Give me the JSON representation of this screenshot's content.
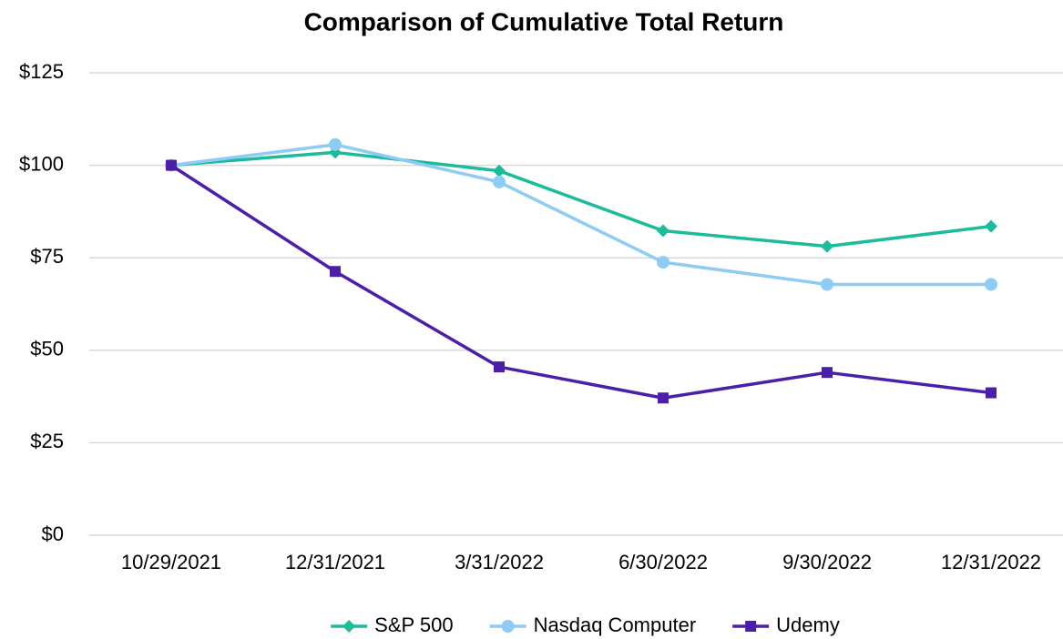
{
  "chart_data": {
    "type": "line",
    "title": "Comparison of Cumulative Total Return",
    "categories": [
      "10/29/2021",
      "12/31/2021",
      "3/31/2022",
      "6/30/2022",
      "9/30/2022",
      "12/31/2022"
    ],
    "series": [
      {
        "name": "S&P 500",
        "color": "#1bbc9b",
        "marker": "diamond",
        "values": [
          100,
          103.5,
          98.5,
          82.3,
          78.1,
          83.5
        ]
      },
      {
        "name": "Nasdaq Computer",
        "color": "#8ecbf5",
        "marker": "circle",
        "values": [
          100,
          105.6,
          95.5,
          73.8,
          67.8,
          67.8
        ]
      },
      {
        "name": "Udemy",
        "color": "#4b1fa8",
        "marker": "square",
        "values": [
          100,
          71.3,
          45.5,
          37.1,
          44.0,
          38.5
        ]
      }
    ],
    "ylim": [
      0,
      125
    ],
    "yticks": [
      {
        "value": 0,
        "label": "$0"
      },
      {
        "value": 25,
        "label": "$25"
      },
      {
        "value": 50,
        "label": "$50"
      },
      {
        "value": 75,
        "label": "$75"
      },
      {
        "value": 100,
        "label": "$100"
      },
      {
        "value": 125,
        "label": "$125"
      }
    ],
    "grid": true,
    "legend": "bottom"
  }
}
